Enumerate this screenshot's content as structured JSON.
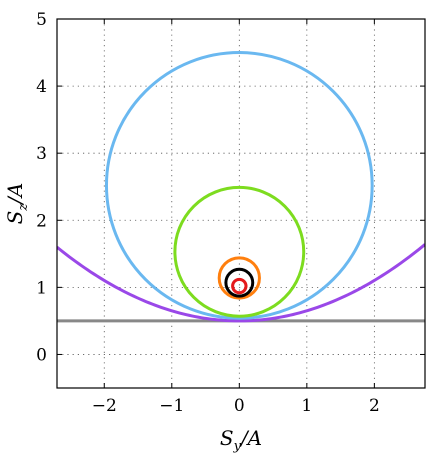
{
  "chart_data": {
    "type": "line",
    "xlabel_main": "S",
    "xlabel_sub": "y",
    "xlabel_tail": "/A",
    "ylabel_main": "S",
    "ylabel_sub": "z",
    "ylabel_tail": "/A",
    "xlim": [
      -2.7,
      2.75
    ],
    "ylim": [
      -0.5,
      5
    ],
    "xticks": [
      -2,
      -1,
      0,
      1,
      2
    ],
    "yticks": [
      0,
      1,
      2,
      3,
      4,
      5
    ],
    "xtick_labels": [
      "−2",
      "−1",
      "0",
      "1",
      "2"
    ],
    "ytick_labels": [
      "0",
      "1",
      "2",
      "3",
      "4",
      "5"
    ],
    "grid": true,
    "series": [
      {
        "color": "#888888",
        "kind": "hline",
        "y": 0.5
      },
      {
        "color": "#9a48e8",
        "kind": "parabola",
        "vertex": [
          0,
          0.5
        ],
        "points": [
          [
            -2.7,
            1.64
          ],
          [
            -1.5,
            0.85
          ],
          [
            0,
            0.5
          ],
          [
            1.5,
            0.85
          ],
          [
            2.75,
            1.64
          ]
        ]
      },
      {
        "color": "#6ab8f0",
        "kind": "circle",
        "center": [
          0,
          2.52
        ],
        "radius": 1.98
      },
      {
        "color": "#7ddc1f",
        "kind": "circle",
        "center": [
          0,
          1.53
        ],
        "radius": 0.96
      },
      {
        "color": "#ff7f0e",
        "kind": "circle",
        "center": [
          0,
          1.14
        ],
        "radius": 0.3
      },
      {
        "color": "#000000",
        "kind": "circle",
        "center": [
          0,
          1.07
        ],
        "radius": 0.2
      },
      {
        "color": "#e41a1c",
        "kind": "circle",
        "center": [
          0,
          1.02
        ],
        "radius": 0.1
      }
    ]
  }
}
